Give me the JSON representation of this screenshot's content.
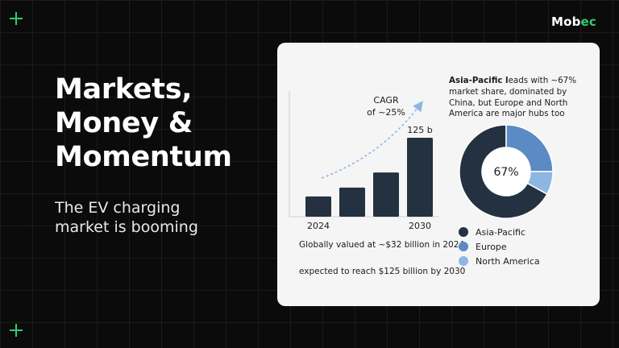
{
  "brand": {
    "name_main": "Mob",
    "name_accent": "ec"
  },
  "headline": {
    "line1": "Markets,",
    "line2": "Money &",
    "line3": "Momentum"
  },
  "subtitle": {
    "line1": "The EV charging",
    "line2": "market is booming"
  },
  "colors": {
    "background": "#0b0b0b",
    "accent": "#2ecc71",
    "card": "#f5f5f5",
    "bar": "#243140"
  },
  "bar_chart": {
    "cagr_line1": "CAGR",
    "cagr_line2": "of ~25%",
    "top_label": "125 b",
    "x_label_start": "2024",
    "x_label_end": "2030"
  },
  "market_text": {
    "line1": "Globally valued at ~$32 billion in 2024",
    "line2": "expected to reach $125 billion by 2030"
  },
  "pie": {
    "desc_bold": "Asia-Pacific l",
    "desc_rest": "eads with ~67% market share, dominated by China, but Europe and North America are major hubs too",
    "center_label": "67%"
  },
  "legend": [
    {
      "label": "Asia-Pacific",
      "color": "#243140"
    },
    {
      "label": "Europe",
      "color": "#5b8ac4"
    },
    {
      "label": "North America",
      "color": "#8db6e3"
    }
  ],
  "chart_data": [
    {
      "type": "bar",
      "categories": [
        "2024",
        "",
        "",
        "2030"
      ],
      "values": [
        32,
        46,
        70,
        125
      ],
      "data_labels": [
        "",
        "",
        "",
        "125 b"
      ],
      "annotation": "CAGR of ~25%"
    },
    {
      "type": "pie",
      "categories": [
        "Asia-Pacific",
        "Europe",
        "North America"
      ],
      "values": [
        67,
        25,
        8
      ],
      "center_label": "67%"
    }
  ]
}
